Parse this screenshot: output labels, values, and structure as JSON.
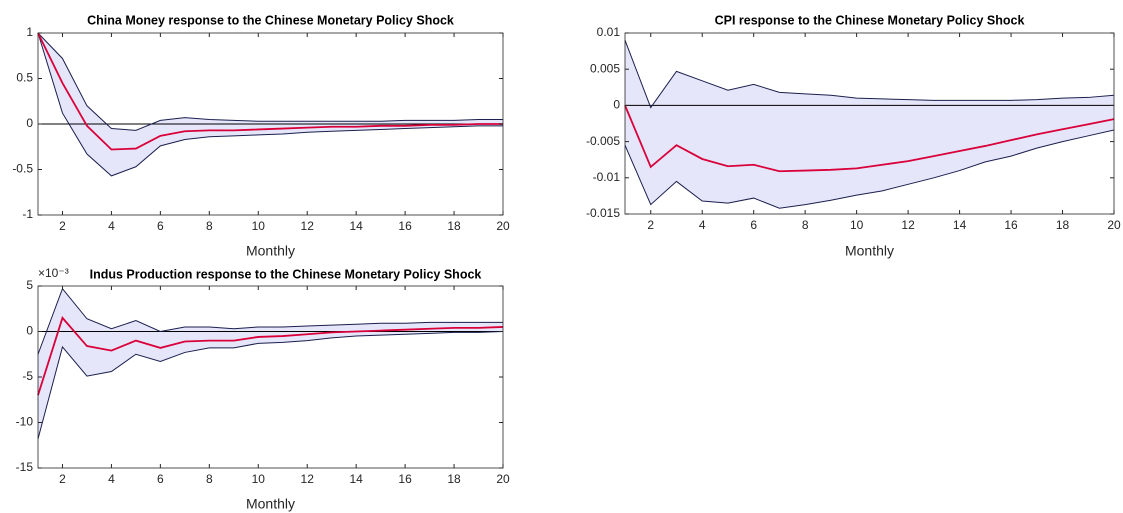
{
  "chart_data": [
    {
      "type": "line",
      "title": "China Money response to the Chinese Monetary Policy Shock",
      "x_label": "Monthly",
      "x": [
        1,
        2,
        3,
        4,
        5,
        6,
        7,
        8,
        9,
        10,
        11,
        12,
        13,
        14,
        15,
        16,
        17,
        18,
        19,
        20
      ],
      "xlim": [
        1,
        20
      ],
      "xticks": [
        2,
        4,
        6,
        8,
        10,
        12,
        14,
        16,
        18,
        20
      ],
      "ylim": [
        -1,
        1
      ],
      "yticks": [
        -1,
        -0.5,
        0,
        0.5,
        1
      ],
      "hline": 0,
      "band_color": "#e6e6fa",
      "series": [
        {
          "color": "#d9003a",
          "values": [
            1,
            0.45,
            -0.02,
            -0.28,
            -0.27,
            -0.13,
            -0.08,
            -0.07,
            -0.07,
            -0.06,
            -0.05,
            -0.04,
            -0.03,
            -0.03,
            -0.02,
            -0.02,
            -0.01,
            -0.01,
            0,
            0
          ]
        },
        {
          "color": "#1a1f4d",
          "values": [
            1,
            0.72,
            0.2,
            -0.05,
            -0.07,
            0.04,
            0.07,
            0.05,
            0.04,
            0.03,
            0.03,
            0.03,
            0.03,
            0.03,
            0.03,
            0.04,
            0.04,
            0.04,
            0.05,
            0.05
          ]
        },
        {
          "color": "#1a1f4d",
          "values": [
            1,
            0.12,
            -0.33,
            -0.57,
            -0.47,
            -0.24,
            -0.17,
            -0.14,
            -0.13,
            -0.12,
            -0.11,
            -0.09,
            -0.08,
            -0.07,
            -0.06,
            -0.05,
            -0.04,
            -0.03,
            -0.02,
            -0.02
          ]
        }
      ]
    },
    {
      "type": "line",
      "title": "CPI response to the Chinese Monetary Policy Shock",
      "x_label": "Monthly",
      "x": [
        1,
        2,
        3,
        4,
        5,
        6,
        7,
        8,
        9,
        10,
        11,
        12,
        13,
        14,
        15,
        16,
        17,
        18,
        19,
        20
      ],
      "xlim": [
        1,
        20
      ],
      "xticks": [
        2,
        4,
        6,
        8,
        10,
        12,
        14,
        16,
        18,
        20
      ],
      "ylim": [
        -0.015,
        0.01
      ],
      "yticks": [
        -0.015,
        -0.01,
        -0.005,
        0,
        0.005,
        0.01
      ],
      "hline": 0,
      "band_color": "#e6e6fa",
      "series": [
        {
          "color": "#d9003a",
          "values": [
            0,
            -0.0085,
            -0.0055,
            -0.0074,
            -0.0084,
            -0.0082,
            -0.0091,
            -0.009,
            -0.0089,
            -0.0087,
            -0.0082,
            -0.0077,
            -0.007,
            -0.0063,
            -0.0056,
            -0.0048,
            -0.004,
            -0.0033,
            -0.0026,
            -0.0019
          ]
        },
        {
          "color": "#1a1f4d",
          "values": [
            0.009,
            -0.0003,
            0.0047,
            0.0034,
            0.0021,
            0.0029,
            0.0018,
            0.0016,
            0.0014,
            0.001,
            0.0009,
            0.0008,
            0.0007,
            0.0007,
            0.0007,
            0.0007,
            0.0008,
            0.001,
            0.0011,
            0.0014
          ]
        },
        {
          "color": "#1a1f4d",
          "values": [
            -0.0055,
            -0.0137,
            -0.0105,
            -0.0132,
            -0.0135,
            -0.0128,
            -0.0142,
            -0.0137,
            -0.0131,
            -0.0124,
            -0.0118,
            -0.0109,
            -0.01,
            -0.009,
            -0.0078,
            -0.007,
            -0.0059,
            -0.005,
            -0.0042,
            -0.0034
          ]
        }
      ]
    },
    {
      "type": "line",
      "title": "Indus Production response to the Chinese Monetary Policy Shock",
      "x_label": "Monthly",
      "y_exponent_label": "×10⁻³",
      "x": [
        1,
        2,
        3,
        4,
        5,
        6,
        7,
        8,
        9,
        10,
        11,
        12,
        13,
        14,
        15,
        16,
        17,
        18,
        19,
        20
      ],
      "xlim": [
        1,
        20
      ],
      "xticks": [
        2,
        4,
        6,
        8,
        10,
        12,
        14,
        16,
        18,
        20
      ],
      "ylim": [
        -15,
        5
      ],
      "yticks": [
        -15,
        -10,
        -5,
        0,
        5
      ],
      "hline": 0,
      "band_color": "#e6e6fa",
      "series": [
        {
          "color": "#d9003a",
          "values": [
            -7,
            1.5,
            -1.6,
            -2.1,
            -1.0,
            -1.8,
            -1.1,
            -1.0,
            -1.0,
            -0.6,
            -0.5,
            -0.3,
            -0.1,
            0,
            0.1,
            0.2,
            0.3,
            0.4,
            0.4,
            0.5
          ]
        },
        {
          "color": "#1a1f4d",
          "values": [
            -2.5,
            4.7,
            1.4,
            0.3,
            1.2,
            0,
            0.5,
            0.5,
            0.3,
            0.5,
            0.5,
            0.6,
            0.7,
            0.8,
            0.9,
            0.9,
            1.0,
            1.0,
            1.0,
            1.0
          ]
        },
        {
          "color": "#1a1f4d",
          "values": [
            -11.8,
            -1.7,
            -4.9,
            -4.4,
            -2.5,
            -3.3,
            -2.3,
            -1.8,
            -1.8,
            -1.3,
            -1.2,
            -1.0,
            -0.7,
            -0.5,
            -0.4,
            -0.3,
            -0.2,
            -0.1,
            -0.1,
            0
          ]
        }
      ]
    }
  ]
}
